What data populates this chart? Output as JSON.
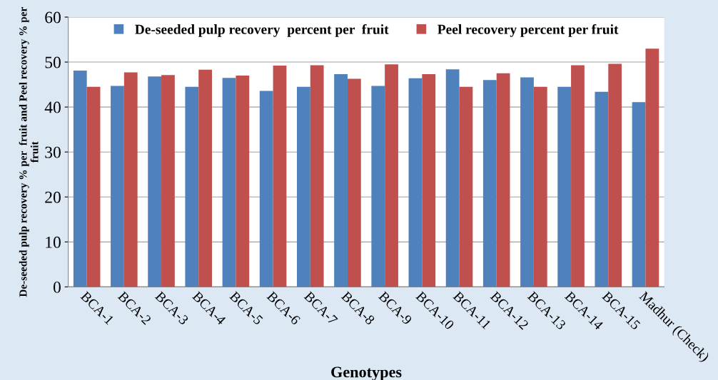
{
  "chart_data": {
    "type": "bar",
    "xlabel": "Genotypes",
    "ylabel": "De-seeded pulp recovery % per  fruit and Peel recovery % per fruit",
    "categories": [
      "BCA-1",
      "BCA-2",
      "BCA-3",
      "BCA-4",
      "BCA-5",
      "BCA-6",
      "BCA-7",
      "BCA-8",
      "BCA-9",
      "BCA-10",
      "BCA-11",
      "BCA-12",
      "BCA-13",
      "BCA-14",
      "BCA-15",
      "Madhur (Check)"
    ],
    "series": [
      {
        "name": "De-seeded pulp recovery  percent per  fruit",
        "color": "#4f81bd",
        "values": [
          48.1,
          44.7,
          46.8,
          44.5,
          46.5,
          43.6,
          44.5,
          47.3,
          44.7,
          46.4,
          48.4,
          46.0,
          46.6,
          44.5,
          43.4,
          41.1
        ]
      },
      {
        "name": "Peel recovery percent per fruit",
        "color": "#c0504d",
        "values": [
          44.5,
          47.7,
          47.1,
          48.3,
          47.0,
          49.2,
          49.3,
          46.3,
          49.5,
          47.3,
          44.5,
          47.5,
          44.5,
          49.3,
          49.6,
          53.0
        ]
      }
    ],
    "ylim": [
      0,
      60
    ],
    "yticks": [
      0,
      10,
      20,
      30,
      40,
      50,
      60
    ],
    "grid": "y",
    "legend": "top"
  }
}
